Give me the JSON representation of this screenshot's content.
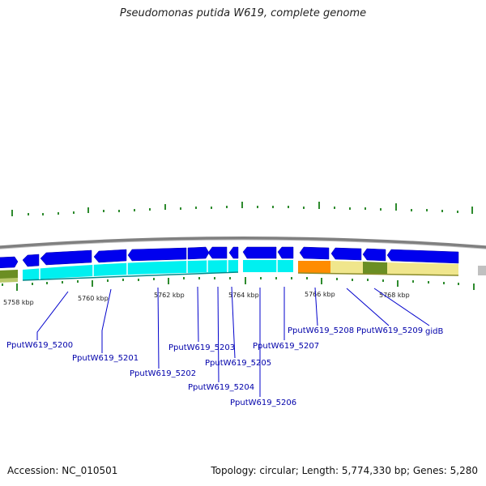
{
  "header": {
    "title": "Pseudomonas putida W619, complete genome"
  },
  "footer": {
    "accession": "Accession: NC_010501",
    "summary": "Topology: circular; Length: 5,774,330 bp; Genes: 5,280"
  },
  "colors": {
    "cds_forward": "#0000ee",
    "cds_track": "#00f0f0",
    "backbone": "#808080",
    "tick": "#2e8b2e",
    "label": "#0000aa",
    "orange": "#ff8c00",
    "khaki": "#f0e68c",
    "olive": "#6b8e23"
  },
  "kbp_ticks": [
    "5758 kbp",
    "5760 kbp",
    "5762 kbp",
    "5764 kbp",
    "5766 kbp",
    "5768 kbp"
  ],
  "genes": [
    {
      "name": "PputW619_5200"
    },
    {
      "name": "PputW619_5201"
    },
    {
      "name": "PputW619_5202"
    },
    {
      "name": "PputW619_5203"
    },
    {
      "name": "PputW619_5204"
    },
    {
      "name": "PputW619_5205"
    },
    {
      "name": "PputW619_5206"
    },
    {
      "name": "PputW619_5207"
    },
    {
      "name": "PputW619_5208"
    },
    {
      "name": "PputW619_5209"
    },
    {
      "name": "gidB"
    }
  ]
}
